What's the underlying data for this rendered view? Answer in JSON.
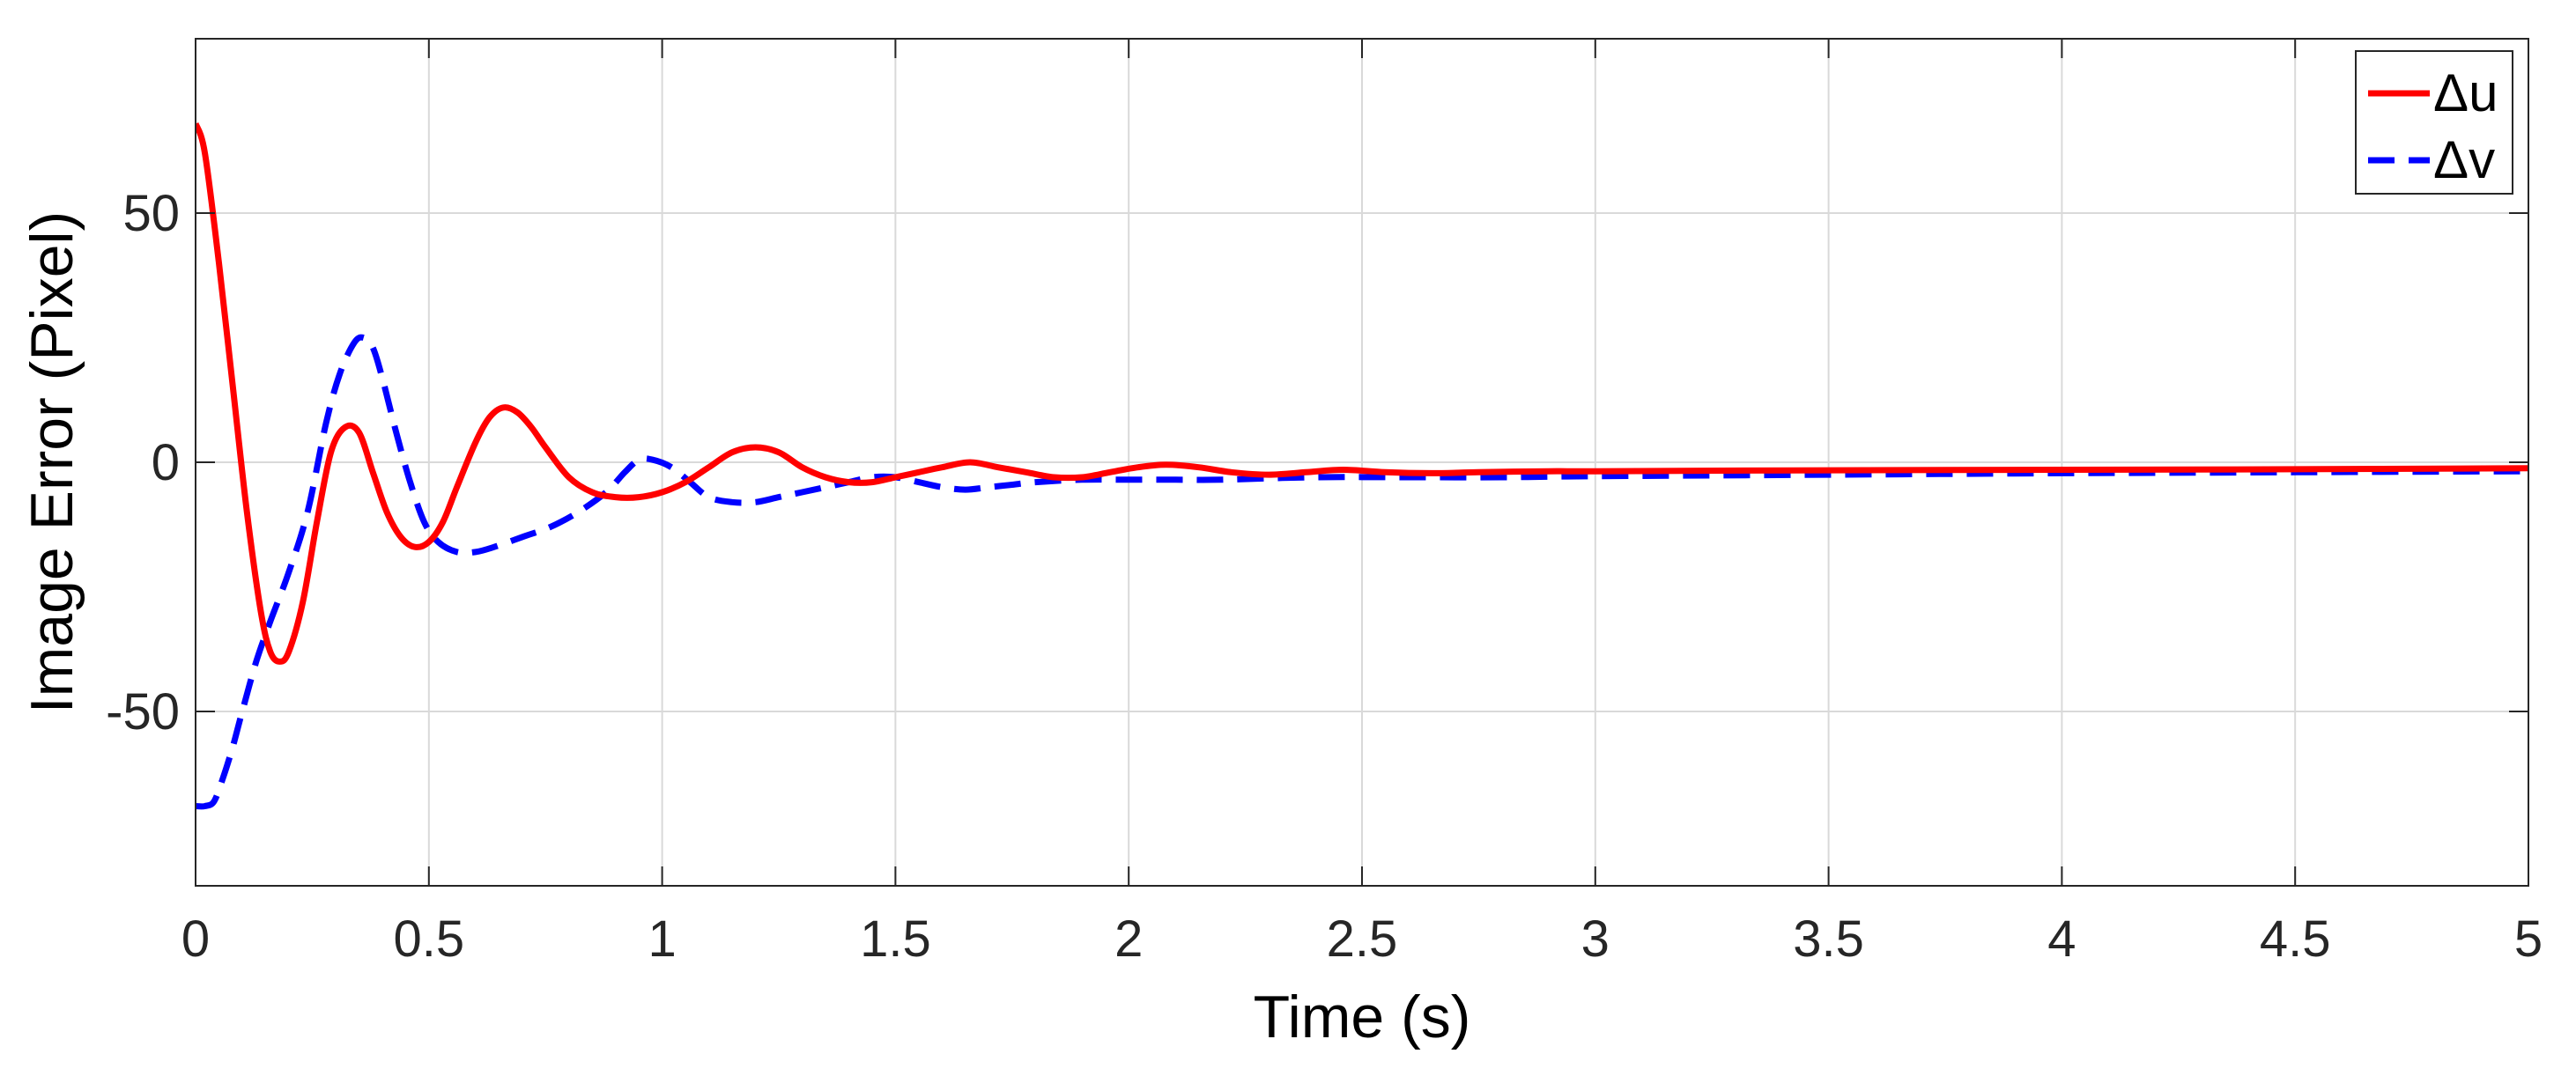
{
  "chart_data": {
    "type": "line",
    "title": "",
    "xlabel": "Time (s)",
    "ylabel": "Image Error (Pixel)",
    "xlim": [
      0,
      5
    ],
    "ylim": [
      -85,
      85
    ],
    "x_ticks": [
      0,
      0.5,
      1,
      1.5,
      2,
      2.5,
      3,
      3.5,
      4,
      4.5,
      5
    ],
    "x_tick_labels": [
      "0",
      "0.5",
      "1",
      "1.5",
      "2",
      "2.5",
      "3",
      "3.5",
      "4",
      "4.5",
      "5"
    ],
    "y_ticks": [
      -50,
      0,
      50
    ],
    "y_tick_labels": [
      "-50",
      "0",
      "50"
    ],
    "grid": true,
    "legend_position": "top-right",
    "series": [
      {
        "name": "Δu",
        "color": "#ff0000",
        "style": "solid",
        "x": [
          0,
          0.02,
          0.05,
          0.08,
          0.11,
          0.14,
          0.16,
          0.18,
          0.2,
          0.23,
          0.26,
          0.29,
          0.32,
          0.35,
          0.38,
          0.41,
          0.44,
          0.47,
          0.5,
          0.53,
          0.56,
          0.6,
          0.63,
          0.66,
          0.69,
          0.72,
          0.75,
          0.8,
          0.85,
          0.9,
          0.95,
          1.0,
          1.05,
          1.1,
          1.15,
          1.2,
          1.25,
          1.3,
          1.35,
          1.4,
          1.45,
          1.5,
          1.55,
          1.6,
          1.66,
          1.72,
          1.78,
          1.84,
          1.9,
          1.96,
          2.02,
          2.08,
          2.15,
          2.22,
          2.3,
          2.38,
          2.46,
          2.55,
          2.65,
          2.75,
          2.9,
          3.0,
          3.5,
          4.0,
          4.5,
          5.0
        ],
        "y": [
          68,
          62,
          40,
          15,
          -10,
          -30,
          -38,
          -40,
          -38,
          -28,
          -12,
          2,
          7,
          6,
          -2,
          -10,
          -15,
          -17,
          -16,
          -12,
          -5,
          4,
          9,
          11,
          10,
          7,
          3,
          -3,
          -6,
          -7,
          -7,
          -6,
          -4,
          -1,
          2,
          3,
          2,
          -1,
          -3,
          -4,
          -4,
          -3,
          -2,
          -1,
          0,
          -1,
          -2,
          -3,
          -3,
          -2,
          -1,
          -0.5,
          -1,
          -2,
          -2.5,
          -2,
          -1.5,
          -2,
          -2.2,
          -2,
          -1.8,
          -1.8,
          -1.6,
          -1.5,
          -1.4,
          -1.2
        ]
      },
      {
        "name": "Δv",
        "color": "#0000ff",
        "style": "dashed",
        "x": [
          0,
          0.02,
          0.04,
          0.06,
          0.08,
          0.1,
          0.13,
          0.16,
          0.2,
          0.24,
          0.28,
          0.31,
          0.34,
          0.36,
          0.38,
          0.4,
          0.43,
          0.46,
          0.49,
          0.52,
          0.56,
          0.6,
          0.64,
          0.7,
          0.76,
          0.82,
          0.88,
          0.92,
          0.95,
          0.98,
          1.02,
          1.06,
          1.1,
          1.15,
          1.2,
          1.25,
          1.3,
          1.35,
          1.4,
          1.45,
          1.5,
          1.55,
          1.6,
          1.65,
          1.7,
          1.75,
          1.8,
          1.9,
          2.0,
          2.1,
          2.2,
          2.4,
          2.6,
          2.8,
          3.0,
          3.5,
          4.0,
          4.5,
          5.0
        ],
        "y": [
          -69,
          -69,
          -68,
          -63,
          -57,
          -50,
          -40,
          -32,
          -22,
          -10,
          8,
          18,
          24,
          25,
          23,
          17,
          6,
          -4,
          -12,
          -16,
          -18,
          -18,
          -17,
          -15,
          -13,
          -10,
          -6,
          -2,
          0.5,
          0.5,
          -1,
          -4,
          -7,
          -8,
          -8,
          -7,
          -6,
          -5,
          -4,
          -3,
          -3,
          -4,
          -5,
          -5.5,
          -5,
          -4.5,
          -4,
          -3.5,
          -3.5,
          -3.5,
          -3.5,
          -3,
          -3,
          -3,
          -2.8,
          -2.5,
          -2.2,
          -2,
          -1.8
        ]
      }
    ]
  }
}
